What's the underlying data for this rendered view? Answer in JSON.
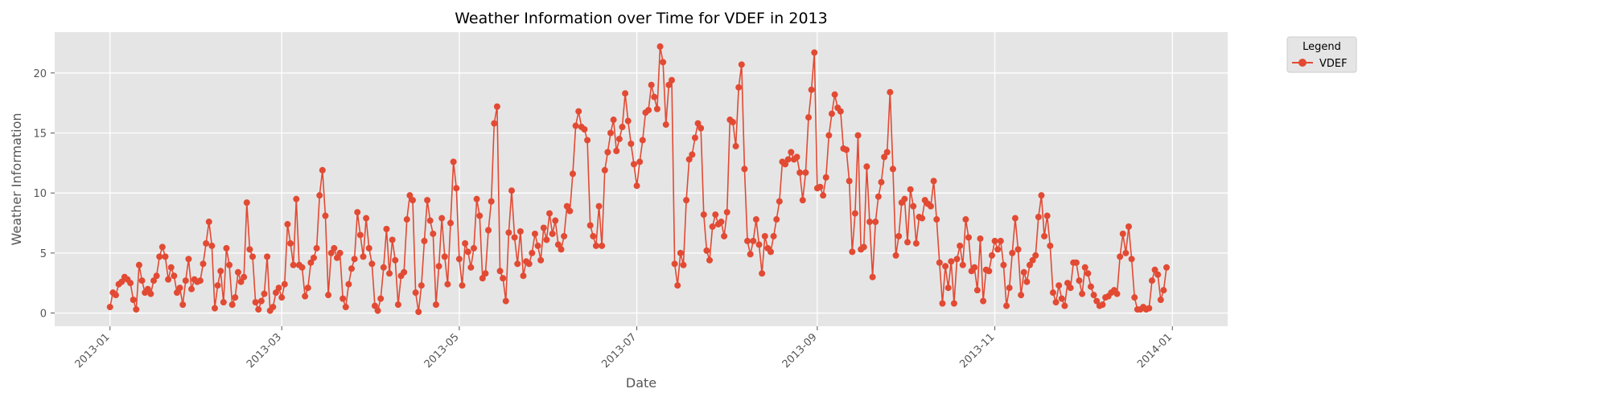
{
  "chart_data": {
    "type": "line",
    "title": "Weather Information over Time for VDEF in 2013",
    "xlabel": "Date",
    "ylabel": "Weather Information",
    "x_range": [
      "2012-12-13",
      "2014-01-20"
    ],
    "ylim": [
      -1.1,
      23.4
    ],
    "x_ticks": [
      "2013-01-01",
      "2013-03-01",
      "2013-05-01",
      "2013-07-01",
      "2013-09-01",
      "2013-11-01",
      "2014-01-01"
    ],
    "x_tick_labels": [
      "2013-01",
      "2013-03",
      "2013-05",
      "2013-07",
      "2013-09",
      "2013-11",
      "2014-01"
    ],
    "y_ticks": [
      0,
      5,
      10,
      15,
      20
    ],
    "y_tick_labels": [
      "0",
      "5",
      "10",
      "15",
      "20"
    ],
    "grid": true,
    "legend": {
      "title": "Legend",
      "placement": "outside-top-right",
      "entries": [
        "VDEF"
      ]
    },
    "series": [
      {
        "name": "VDEF",
        "color": "#E24A33",
        "start_date": "2013-01-01",
        "values": [
          0.5,
          1.7,
          1.5,
          2.4,
          2.6,
          3.0,
          2.8,
          2.5,
          1.1,
          0.3,
          4.0,
          2.7,
          1.7,
          2.0,
          1.6,
          2.7,
          3.1,
          4.7,
          5.5,
          4.7,
          2.8,
          3.8,
          3.1,
          1.7,
          2.1,
          0.7,
          2.7,
          4.5,
          2.0,
          2.8,
          2.6,
          2.7,
          4.1,
          5.8,
          7.6,
          5.6,
          0.4,
          2.3,
          3.5,
          0.9,
          5.4,
          4.0,
          0.7,
          1.3,
          3.4,
          2.6,
          3.0,
          9.2,
          5.3,
          4.7,
          0.9,
          0.3,
          1.0,
          1.6,
          4.7,
          0.2,
          0.5,
          1.7,
          2.1,
          1.3,
          2.4,
          7.4,
          5.8,
          4.0,
          9.5,
          4.0,
          3.8,
          1.4,
          2.1,
          4.2,
          4.6,
          5.4,
          9.8,
          11.9,
          8.1,
          1.5,
          5.0,
          5.4,
          4.6,
          5.0,
          1.2,
          0.5,
          2.4,
          3.7,
          4.5,
          8.4,
          6.5,
          4.7,
          7.9,
          5.4,
          4.1,
          0.6,
          0.2,
          1.2,
          3.8,
          7.0,
          3.3,
          6.1,
          4.4,
          0.7,
          3.1,
          3.4,
          7.8,
          9.8,
          9.4,
          1.7,
          0.1,
          2.3,
          6.0,
          9.4,
          7.7,
          6.6,
          0.7,
          3.9,
          7.9,
          4.7,
          2.4,
          7.5,
          12.6,
          10.4,
          4.5,
          2.3,
          5.8,
          5.1,
          3.8,
          5.4,
          9.5,
          8.1,
          2.9,
          3.3,
          6.9,
          9.3,
          15.8,
          17.2,
          3.5,
          2.9,
          1.0,
          6.7,
          10.2,
          6.3,
          4.1,
          6.8,
          3.1,
          4.3,
          4.1,
          5.0,
          6.6,
          5.6,
          4.4,
          7.1,
          6.1,
          8.3,
          6.6,
          7.7,
          5.7,
          5.3,
          6.4,
          8.9,
          8.5,
          11.6,
          15.6,
          16.8,
          15.5,
          15.3,
          14.4,
          7.3,
          6.4,
          5.6,
          8.9,
          5.6,
          11.9,
          13.4,
          15.0,
          16.1,
          13.5,
          14.5,
          15.5,
          18.3,
          16.0,
          14.1,
          12.4,
          10.6,
          12.6,
          14.4,
          16.7,
          16.9,
          19.0,
          18.0,
          17.0,
          22.2,
          20.9,
          15.7,
          19.0,
          19.4,
          4.1,
          2.3,
          5.0,
          4.0,
          9.4,
          12.8,
          13.2,
          14.6,
          15.8,
          15.4,
          8.2,
          5.2,
          4.4,
          7.2,
          8.2,
          7.4,
          7.6,
          6.4,
          8.4,
          16.1,
          15.9,
          13.9,
          18.8,
          20.7,
          12.0,
          6.0,
          4.9,
          6.0,
          7.8,
          5.7,
          3.3,
          6.4,
          5.4,
          5.1,
          6.4,
          7.8,
          9.3,
          12.6,
          12.4,
          12.8,
          13.4,
          12.8,
          13.0,
          11.7,
          9.4,
          11.7,
          16.3,
          18.6,
          21.7,
          10.4,
          10.5,
          9.8,
          11.3,
          14.8,
          16.6,
          18.2,
          17.1,
          16.8,
          13.7,
          13.6,
          11.0,
          5.1,
          8.3,
          14.8,
          5.3,
          5.5,
          12.2,
          7.6,
          3.0,
          7.6,
          9.7,
          10.9,
          13.0,
          13.4,
          18.4,
          12.0,
          4.8,
          6.4,
          9.2,
          9.5,
          5.9,
          10.3,
          8.9,
          5.8,
          8.0,
          7.9,
          9.4,
          9.1,
          8.9,
          11.0,
          7.8,
          4.2,
          0.8,
          3.9,
          2.1,
          4.3,
          0.8,
          4.5,
          5.6,
          4.0,
          7.8,
          6.3,
          3.5,
          3.8,
          1.9,
          6.2,
          1.0,
          3.6,
          3.5,
          4.8,
          6.0,
          5.3,
          6.0,
          4.0,
          0.6,
          2.1,
          5.0,
          7.9,
          5.3,
          1.5,
          3.4,
          2.6,
          4.0,
          4.4,
          4.8,
          8.0,
          9.8,
          6.4,
          8.1,
          5.6,
          1.7,
          0.9,
          2.3,
          1.2,
          0.6,
          2.5,
          2.1,
          4.2,
          4.2,
          2.7,
          1.6,
          3.8,
          3.3,
          2.2,
          1.5,
          1.0,
          0.6,
          0.7,
          1.3,
          1.4,
          1.7,
          1.9,
          1.6,
          4.7,
          6.6,
          5.0,
          7.2,
          4.5,
          1.3,
          0.3,
          0.3,
          0.5,
          0.3,
          0.4,
          2.7,
          3.6,
          3.2,
          1.1,
          1.9,
          3.8
        ]
      }
    ]
  }
}
